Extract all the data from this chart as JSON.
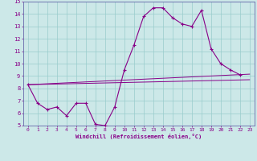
{
  "xlabel": "Windchill (Refroidissement éolien,°C)",
  "bg_color": "#cce8e8",
  "grid_color": "#99cccc",
  "line_color": "#880088",
  "spine_color": "#6666aa",
  "xlim": [
    -0.5,
    23.5
  ],
  "ylim": [
    5,
    15
  ],
  "xticks": [
    0,
    1,
    2,
    3,
    4,
    5,
    6,
    7,
    8,
    9,
    10,
    11,
    12,
    13,
    14,
    15,
    16,
    17,
    18,
    19,
    20,
    21,
    22,
    23
  ],
  "yticks": [
    5,
    6,
    7,
    8,
    9,
    10,
    11,
    12,
    13,
    14,
    15
  ],
  "line1_x": [
    0,
    1,
    2,
    3,
    4,
    5,
    6,
    7,
    8,
    9,
    10,
    11,
    12,
    13,
    14,
    15,
    16,
    17,
    18,
    19,
    20,
    21,
    22
  ],
  "line1_y": [
    8.3,
    6.8,
    6.3,
    6.5,
    5.8,
    6.8,
    6.8,
    5.1,
    5.0,
    6.5,
    9.5,
    11.5,
    13.8,
    14.5,
    14.5,
    13.7,
    13.2,
    13.0,
    14.3,
    11.2,
    10.0,
    9.5,
    9.1
  ],
  "line2_x": [
    0,
    23
  ],
  "line2_y": [
    8.3,
    8.7
  ],
  "line3_x": [
    0,
    23
  ],
  "line3_y": [
    8.3,
    9.15
  ],
  "marker": "+"
}
